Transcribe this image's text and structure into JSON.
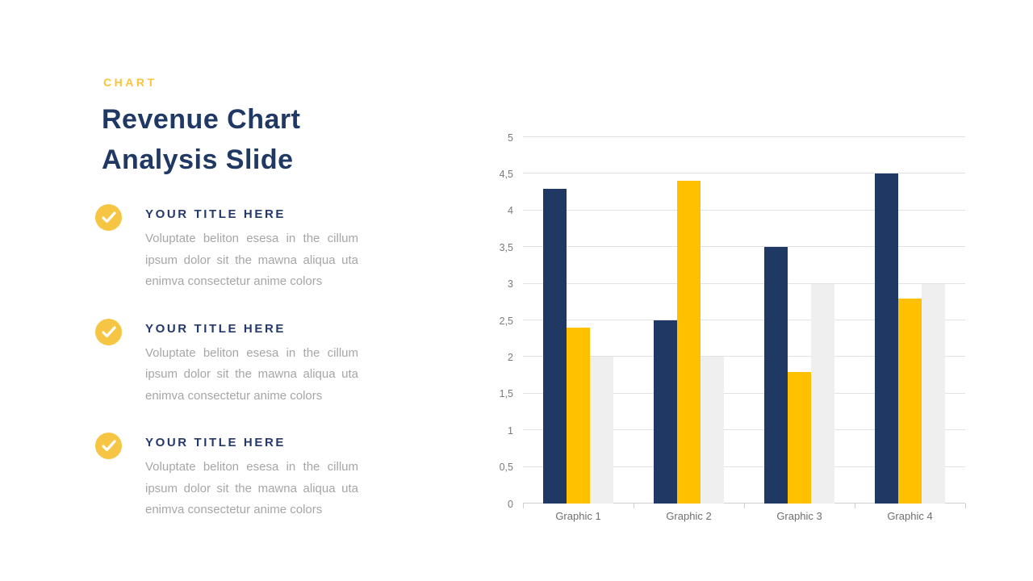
{
  "slide": {
    "kicker": "CHART",
    "title_lines": [
      "Revenue Chart",
      "Analysis Slide"
    ],
    "items": [
      {
        "title": "YOUR TITLE HERE",
        "body": "Voluptate beliton esesa in the cillum ipsum dolor sit the mawna aliqua uta enimva consectetur anime colors"
      },
      {
        "title": "YOUR TITLE HERE",
        "body": "Voluptate beliton esesa in the cillum ipsum dolor sit the mawna aliqua uta enimva consectetur anime colors"
      },
      {
        "title": "YOUR TITLE HERE",
        "body": "Voluptate beliton esesa in the cillum ipsum dolor sit the mawna aliqua uta enimva consectetur anime colors"
      }
    ]
  },
  "colors": {
    "accent_yellow": "#F6C544",
    "kicker_yellow": "#F9C437",
    "title_navy": "#1F3864",
    "body_gray": "#A6A6A6",
    "bar_navy": "#203864",
    "bar_yellow": "#FFC000",
    "bar_gray": "#EFEFEF",
    "gridline": "#E2E2E2"
  },
  "chart_data": {
    "type": "bar",
    "title": "",
    "xlabel": "",
    "ylabel": "",
    "categories": [
      "Graphic 1",
      "Graphic 2",
      "Graphic 3",
      "Graphic 4"
    ],
    "series": [
      {
        "name": "series-navy",
        "color": "#203864",
        "values": [
          4.3,
          2.5,
          3.5,
          4.5
        ]
      },
      {
        "name": "series-yellow",
        "color": "#FFC000",
        "values": [
          2.4,
          4.4,
          1.8,
          2.8
        ]
      },
      {
        "name": "series-gray",
        "color": "#EFEFEF",
        "values": [
          2.0,
          2.0,
          3.0,
          3.0
        ]
      }
    ],
    "ylim": [
      0,
      5
    ],
    "ytick_step": 0.5,
    "ytick_labels": [
      "0",
      "0,5",
      "1",
      "1,5",
      "2",
      "2,5",
      "3",
      "3,5",
      "4",
      "4,5",
      "5"
    ],
    "grid": true,
    "legend_position": "none"
  }
}
